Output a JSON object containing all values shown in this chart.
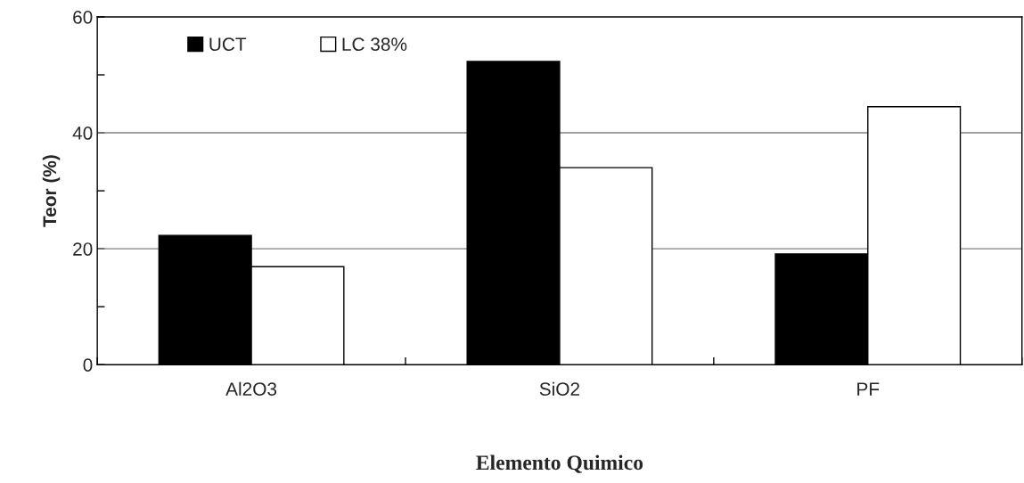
{
  "chart_data": {
    "type": "bar",
    "xlabel": "Elemento Quimico",
    "ylabel": "Teor (%)",
    "categories": [
      "Al2O3",
      "SiO2",
      "PF"
    ],
    "series": [
      {
        "name": "UCT",
        "color": "#000000",
        "values": [
          22.3,
          52.3,
          19.1
        ]
      },
      {
        "name": "LC 38%",
        "color": "#ffffff",
        "values": [
          16.9,
          34.0,
          44.5
        ]
      }
    ],
    "ylim": [
      0,
      60
    ],
    "yticks": [
      0,
      {
        "value": 10,
        "label": null
      },
      20,
      {
        "value": 30,
        "label": null
      },
      40,
      {
        "value": 50,
        "label": null
      },
      60
    ],
    "grid": "y",
    "legend": "top left"
  }
}
